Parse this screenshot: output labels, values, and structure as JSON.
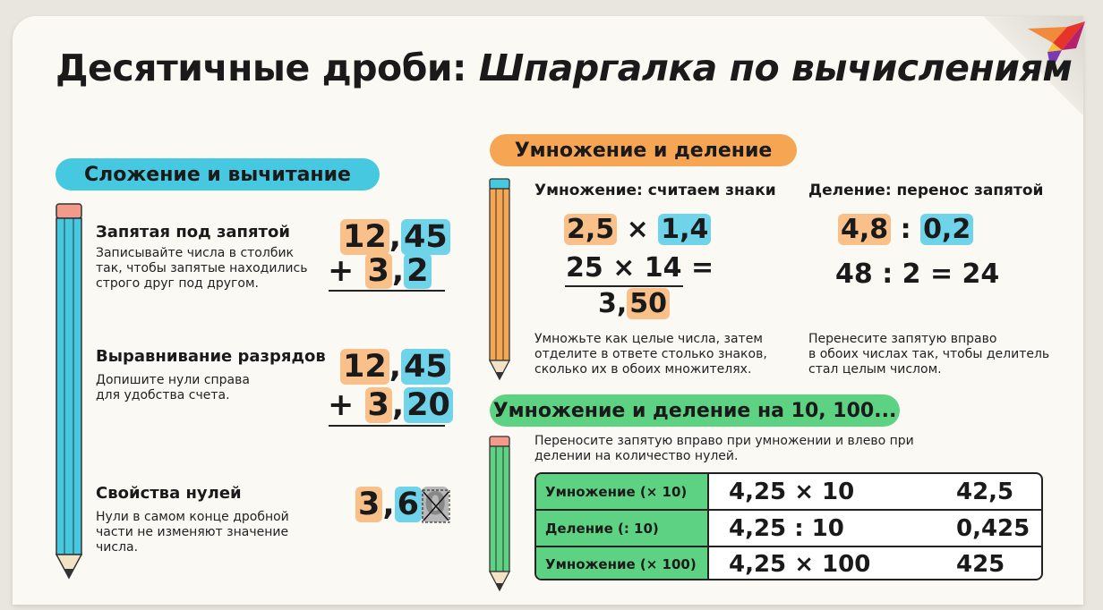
{
  "title": {
    "part1": "Десятичные дроби:",
    "part2": "Шпаргалка по вычислениям"
  },
  "colors": {
    "blue": "#45c8e0",
    "orange": "#f6a553",
    "green": "#5ed283",
    "highlight_orange": "#f9c089",
    "highlight_blue": "#6fd3ea"
  },
  "addition": {
    "heading": "Сложение и вычитание",
    "items": [
      {
        "title": "Запятая под запятой",
        "text": "Записывайте числа в столбик\nтак, чтобы запятые находились\nстрого друг под другом.",
        "top_int": "12",
        "top_frac": "45",
        "bottom_op": "+",
        "bottom_int": "3",
        "bottom_frac": "2"
      },
      {
        "title": "Выравнивание разрядов",
        "text": "Допишите нули справа\nдля удобства счета.",
        "top_int": "12",
        "top_frac": "45",
        "bottom_op": "+",
        "bottom_int": "3",
        "bottom_frac": "20"
      },
      {
        "title": "Свойства нулей",
        "text": "Нули в самом конце дробной\nчасти не изменяют значение\nчисла.",
        "int": "3",
        "frac": "6",
        "zero": "0"
      }
    ]
  },
  "mult_div": {
    "heading": "Умножение и деление",
    "multiplication": {
      "title": "Умножение: считаем знаки",
      "a": "2,5",
      "op": "×",
      "b": "1,4",
      "line2": "25 × 14 =",
      "res_int": "3,",
      "res_frac": "50",
      "text": "Умножьте как целые числа, затем\nотделите в ответе столько знаков,\nсколько их в обоих множителях."
    },
    "division": {
      "title": "Деление: перенос запятой",
      "a": "4,8",
      "op": ":",
      "b": "0,2",
      "line2": "48 : 2 = 24",
      "text": "Перенесите запятую вправо\nв обоих числах так, чтобы делитель\nстал целым числом."
    }
  },
  "powers": {
    "heading": "Умножение и деление на 10, 100...",
    "text": "Переносите запятую вправо при умножении и влево при\nделении на количество нулей.",
    "rows": [
      {
        "label": "Умножение (× 10)",
        "expr": "4,25 × 10",
        "result": "42,5"
      },
      {
        "label": "Деление (: 10)",
        "expr": "4,25 : 10",
        "result": "0,425"
      },
      {
        "label": "Умножение (× 100)",
        "expr": "4,25 × 100",
        "result": "425"
      }
    ]
  }
}
